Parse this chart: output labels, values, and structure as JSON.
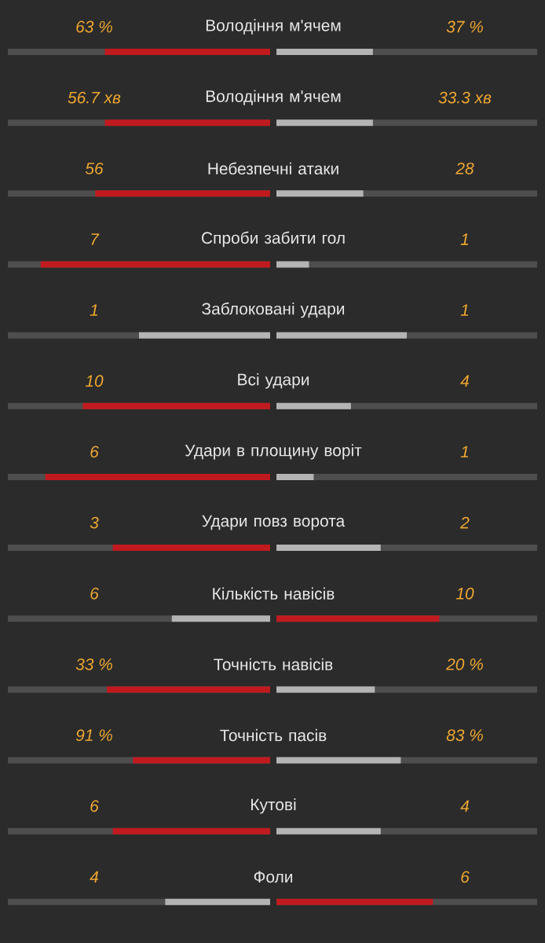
{
  "chart_data": {
    "type": "other",
    "categories": [
      "Володіння м'ячем",
      "Володіння м'ячем",
      "Небезпечні атаки",
      "Спроби забити гол",
      "Заблоковані удари",
      "Всі удари",
      "Удари в площину воріт",
      "Удари повз ворота",
      "Кількість навісів",
      "Точність навісів",
      "Точність пасів",
      "Кутові",
      "Фоли"
    ],
    "series": [
      {
        "values": [
          63,
          56.7,
          56,
          7,
          1,
          10,
          6,
          3,
          6,
          33,
          91,
          6,
          4
        ],
        "value_labels": [
          "63 %",
          "56.7 хв",
          "56",
          "7",
          "1",
          "10",
          "6",
          "3",
          "6",
          "33 %",
          "91 %",
          "6",
          "4"
        ],
        "colors": [
          "#c01a1f",
          "#c01a1f",
          "#c01a1f",
          "#c01a1f",
          "#b4b4b4",
          "#c01a1f",
          "#c01a1f",
          "#c01a1f",
          "#b4b4b4",
          "#c01a1f",
          "#c01a1f",
          "#c01a1f",
          "#b4b4b4"
        ]
      },
      {
        "values": [
          37,
          33.3,
          28,
          1,
          1,
          4,
          1,
          2,
          10,
          20,
          83,
          4,
          6
        ],
        "value_labels": [
          "37 %",
          "33.3 хв",
          "28",
          "1",
          "1",
          "4",
          "1",
          "2",
          "10",
          "20 %",
          "83 %",
          "4",
          "6"
        ],
        "colors": [
          "#b4b4b4",
          "#b4b4b4",
          "#b4b4b4",
          "#b4b4b4",
          "#b4b4b4",
          "#b4b4b4",
          "#b4b4b4",
          "#b4b4b4",
          "#c01a1f",
          "#b4b4b4",
          "#b4b4b4",
          "#b4b4b4",
          "#c01a1f"
        ]
      }
    ]
  }
}
